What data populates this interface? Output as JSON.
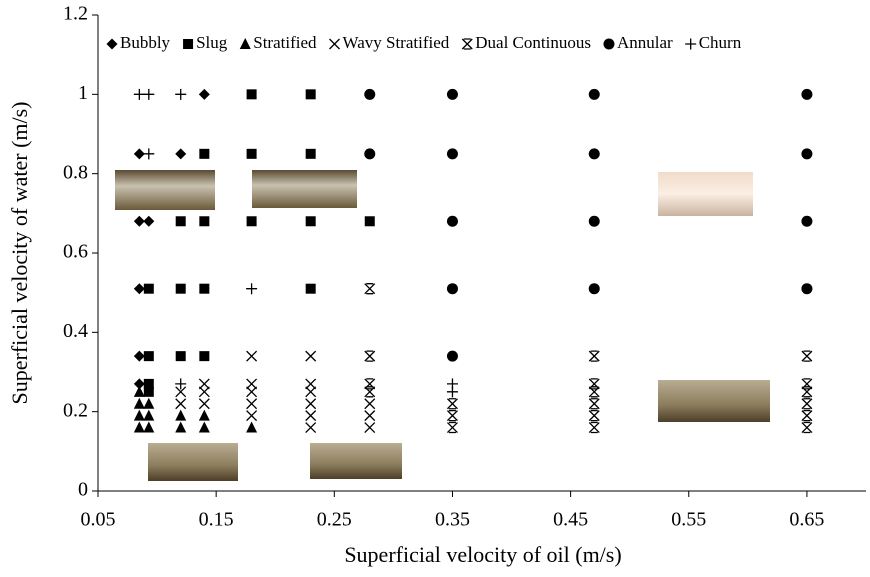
{
  "chart_data": {
    "type": "scatter",
    "x_label": "Superficial velocity of oil (m/s)",
    "y_label": "Superficial velocity of water (m/s)",
    "xlim": [
      0.05,
      0.7
    ],
    "ylim": [
      0,
      1.2
    ],
    "xticks": [
      0.05,
      0.15,
      0.25,
      0.35,
      0.45,
      0.55,
      0.65
    ],
    "yticks": [
      0,
      0.2,
      0.4,
      0.6,
      0.8,
      1,
      1.2
    ],
    "legend": "top",
    "series": [
      {
        "name": "Bubbly",
        "marker": "diamond",
        "color": "#000000",
        "x": [
          0.085,
          0.085,
          0.085,
          0.085,
          0.085,
          0.093,
          0.12,
          0.14
        ],
        "y": [
          0.85,
          0.68,
          0.51,
          0.34,
          0.27,
          0.68,
          0.85,
          1.0
        ]
      },
      {
        "name": "Slug",
        "marker": "square",
        "color": "#000000",
        "x": [
          0.093,
          0.093,
          0.093,
          0.093,
          0.12,
          0.12,
          0.12,
          0.14,
          0.14,
          0.14,
          0.14,
          0.18,
          0.18,
          0.18,
          0.23,
          0.23,
          0.23,
          0.23,
          0.28
        ],
        "y": [
          0.51,
          0.34,
          0.27,
          0.25,
          0.68,
          0.51,
          0.34,
          0.85,
          0.68,
          0.51,
          0.34,
          1.0,
          0.85,
          0.68,
          1.0,
          0.85,
          0.68,
          0.51,
          0.68
        ]
      },
      {
        "name": "Stratified",
        "marker": "triangle",
        "color": "#000000",
        "x": [
          0.085,
          0.085,
          0.085,
          0.085,
          0.093,
          0.093,
          0.093,
          0.12,
          0.12,
          0.14,
          0.14,
          0.18
        ],
        "y": [
          0.25,
          0.22,
          0.19,
          0.16,
          0.22,
          0.19,
          0.16,
          0.19,
          0.16,
          0.19,
          0.16,
          0.16
        ]
      },
      {
        "name": "Wavy Stratified",
        "marker": "x",
        "color": "#000000",
        "x": [
          0.12,
          0.12,
          0.14,
          0.14,
          0.14,
          0.18,
          0.18,
          0.18,
          0.18,
          0.18,
          0.23,
          0.23,
          0.23,
          0.23,
          0.23,
          0.23,
          0.28,
          0.28,
          0.28
        ],
        "y": [
          0.25,
          0.22,
          0.27,
          0.25,
          0.22,
          0.34,
          0.27,
          0.25,
          0.22,
          0.19,
          0.34,
          0.27,
          0.25,
          0.22,
          0.19,
          0.16,
          0.22,
          0.19,
          0.16
        ]
      },
      {
        "name": "Dual Continuous",
        "marker": "asterisk",
        "color": "#000000",
        "x": [
          0.28,
          0.28,
          0.28,
          0.28,
          0.35,
          0.35,
          0.35,
          0.47,
          0.47,
          0.47,
          0.47,
          0.47,
          0.47,
          0.65,
          0.65,
          0.65,
          0.65,
          0.65,
          0.65
        ],
        "y": [
          0.51,
          0.34,
          0.27,
          0.25,
          0.22,
          0.19,
          0.16,
          0.34,
          0.27,
          0.25,
          0.22,
          0.19,
          0.16,
          0.34,
          0.27,
          0.25,
          0.22,
          0.19,
          0.16
        ]
      },
      {
        "name": "Annular",
        "marker": "circle",
        "color": "#000000",
        "x": [
          0.28,
          0.28,
          0.35,
          0.35,
          0.35,
          0.35,
          0.35,
          0.47,
          0.47,
          0.47,
          0.47,
          0.65,
          0.65,
          0.65,
          0.65
        ],
        "y": [
          1.0,
          0.85,
          1.0,
          0.85,
          0.68,
          0.51,
          0.34,
          1.0,
          0.85,
          0.68,
          0.51,
          1.0,
          0.85,
          0.68,
          0.51
        ]
      },
      {
        "name": "Churn",
        "marker": "plus",
        "color": "#000000",
        "x": [
          0.085,
          0.093,
          0.093,
          0.12,
          0.12,
          0.18,
          0.35,
          0.35
        ],
        "y": [
          1.0,
          1.0,
          0.85,
          1.0,
          0.27,
          0.51,
          0.27,
          0.25
        ]
      }
    ]
  }
}
